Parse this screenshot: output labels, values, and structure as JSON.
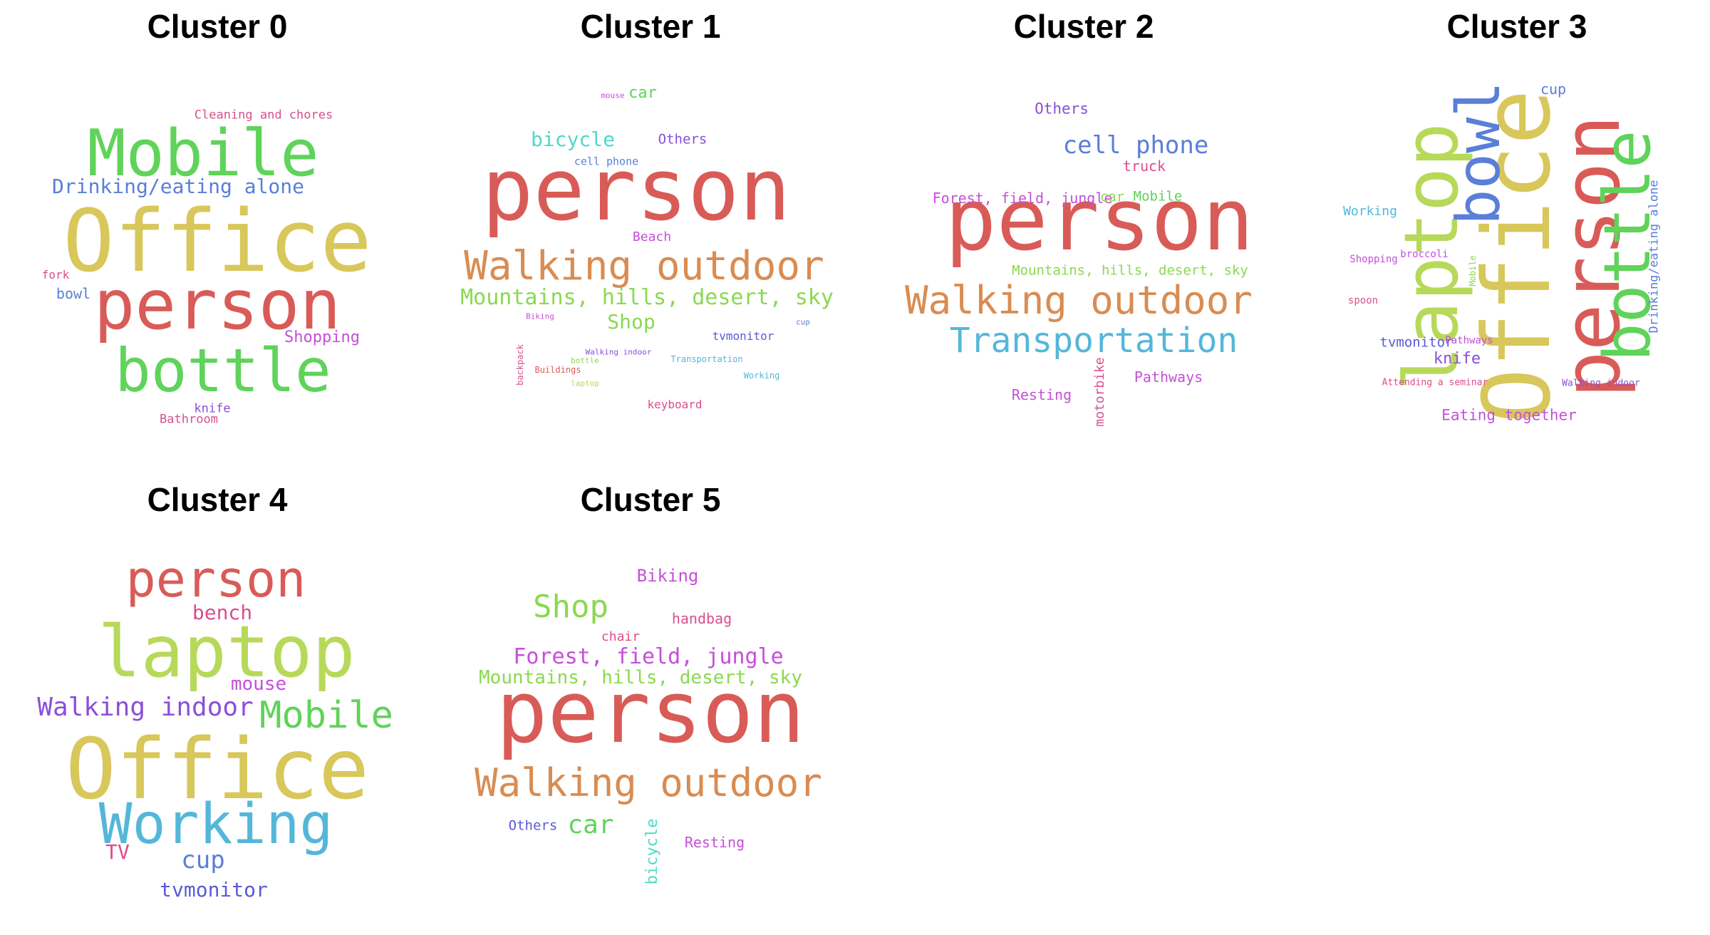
{
  "palette": {
    "red": "#d95b57",
    "yellow": "#d8c75a",
    "green": "#5fd35a",
    "lime": "#b7d95a",
    "orange": "#d98c52",
    "blue": "#5a7fd9",
    "cyan": "#54b7d9",
    "teal": "#4fd9c7",
    "purple": "#8a4fd9",
    "indigo": "#5a5ad9",
    "magenta": "#c54fd9",
    "pink": "#d94f8c",
    "lightgreen": "#8ad94f"
  },
  "clusters": [
    {
      "title": "Cluster 0",
      "words": [
        {
          "text": "Office",
          "size": 120,
          "color": "yellow"
        },
        {
          "text": "person",
          "size": 96,
          "color": "red"
        },
        {
          "text": "Mobile",
          "size": 90,
          "color": "green"
        },
        {
          "text": "bottle",
          "size": 84,
          "color": "green"
        },
        {
          "text": "Drinking/eating alone",
          "size": 28,
          "color": "blue"
        },
        {
          "text": "Cleaning and chores",
          "size": 17,
          "color": "pink"
        },
        {
          "text": "Shopping",
          "size": 22,
          "color": "magenta"
        },
        {
          "text": "bowl",
          "size": 20,
          "color": "blue"
        },
        {
          "text": "fork",
          "size": 16,
          "color": "pink"
        },
        {
          "text": "knife",
          "size": 17,
          "color": "purple"
        },
        {
          "text": "Bathroom",
          "size": 17,
          "color": "pink"
        }
      ]
    },
    {
      "title": "Cluster 1",
      "words": [
        {
          "text": "person",
          "size": 120,
          "color": "red"
        },
        {
          "text": "Walking outdoor",
          "size": 56,
          "color": "orange"
        },
        {
          "text": "Mountains, hills, desert, sky",
          "size": 30,
          "color": "lightgreen"
        },
        {
          "text": "bicycle",
          "size": 28,
          "color": "teal"
        },
        {
          "text": "Shop",
          "size": 28,
          "color": "lightgreen"
        },
        {
          "text": "car",
          "size": 22,
          "color": "green"
        },
        {
          "text": "Others",
          "size": 19,
          "color": "purple"
        },
        {
          "text": "cell phone",
          "size": 15,
          "color": "blue"
        },
        {
          "text": "Beach",
          "size": 18,
          "color": "magenta"
        },
        {
          "text": "tvmonitor",
          "size": 16,
          "color": "indigo"
        },
        {
          "text": "keyboard",
          "size": 16,
          "color": "pink"
        },
        {
          "text": "mouse",
          "size": 11,
          "color": "magenta"
        },
        {
          "text": "Biking",
          "size": 11,
          "color": "magenta"
        },
        {
          "text": "Walking indoor",
          "size": 11,
          "color": "purple"
        },
        {
          "text": "bottle",
          "size": 11,
          "color": "lightgreen"
        },
        {
          "text": "Buildings",
          "size": 12,
          "color": "red"
        },
        {
          "text": "laptop",
          "size": 11,
          "color": "lime"
        },
        {
          "text": "Transportation",
          "size": 12,
          "color": "cyan"
        },
        {
          "text": "Working",
          "size": 12,
          "color": "cyan"
        },
        {
          "text": "cup",
          "size": 11,
          "color": "blue"
        },
        {
          "text": "backpack",
          "size": 12,
          "color": "pink"
        }
      ]
    },
    {
      "title": "Cluster 2",
      "words": [
        {
          "text": "person",
          "size": 120,
          "color": "red"
        },
        {
          "text": "Walking outdoor",
          "size": 54,
          "color": "orange"
        },
        {
          "text": "Transportation",
          "size": 48,
          "color": "cyan"
        },
        {
          "text": "cell phone",
          "size": 34,
          "color": "blue"
        },
        {
          "text": "Others",
          "size": 21,
          "color": "purple"
        },
        {
          "text": "truck",
          "size": 20,
          "color": "pink"
        },
        {
          "text": "Forest, field, jungle",
          "size": 20,
          "color": "magenta"
        },
        {
          "text": "car",
          "size": 19,
          "color": "lightgreen"
        },
        {
          "text": "Mobile",
          "size": 19,
          "color": "green"
        },
        {
          "text": "Mountains, hills, desert, sky",
          "size": 19,
          "color": "lightgreen"
        },
        {
          "text": "Resting",
          "size": 20,
          "color": "magenta"
        },
        {
          "text": "Pathways",
          "size": 20,
          "color": "magenta"
        },
        {
          "text": "motorbike",
          "size": 18,
          "color": "pink"
        }
      ]
    },
    {
      "title": "Cluster 3",
      "words": [
        {
          "text": "Office",
          "size": 130,
          "color": "yellow"
        },
        {
          "text": "person",
          "size": 110,
          "color": "red"
        },
        {
          "text": "laptop",
          "size": 104,
          "color": "lime"
        },
        {
          "text": "bottle",
          "size": 90,
          "color": "green"
        },
        {
          "text": "bowl",
          "size": 84,
          "color": "blue"
        },
        {
          "text": "Drinking/eating alone",
          "size": 17,
          "color": "blue"
        },
        {
          "text": "cup",
          "size": 20,
          "color": "blue"
        },
        {
          "text": "Working",
          "size": 18,
          "color": "cyan"
        },
        {
          "text": "Shopping",
          "size": 14,
          "color": "magenta"
        },
        {
          "text": "broccoli",
          "size": 14,
          "color": "magenta"
        },
        {
          "text": "Mobile",
          "size": 12,
          "color": "lightgreen"
        },
        {
          "text": "spoon",
          "size": 14,
          "color": "pink"
        },
        {
          "text": "tvmonitor",
          "size": 19,
          "color": "indigo"
        },
        {
          "text": "Pathways",
          "size": 14,
          "color": "magenta"
        },
        {
          "text": "knife",
          "size": 22,
          "color": "purple"
        },
        {
          "text": "Attending a seminar",
          "size": 13,
          "color": "pink"
        },
        {
          "text": "Walking indoor",
          "size": 13,
          "color": "purple"
        },
        {
          "text": "Eating together",
          "size": 21,
          "color": "magenta"
        }
      ]
    },
    {
      "title": "Cluster 4",
      "words": [
        {
          "text": "Office",
          "size": 118,
          "color": "yellow"
        },
        {
          "text": "laptop",
          "size": 100,
          "color": "lime"
        },
        {
          "text": "person",
          "size": 70,
          "color": "red"
        },
        {
          "text": "Working",
          "size": 78,
          "color": "cyan"
        },
        {
          "text": "Mobile",
          "size": 52,
          "color": "green"
        },
        {
          "text": "Walking indoor",
          "size": 36,
          "color": "purple"
        },
        {
          "text": "bench",
          "size": 28,
          "color": "pink"
        },
        {
          "text": "mouse",
          "size": 26,
          "color": "magenta"
        },
        {
          "text": "cup",
          "size": 34,
          "color": "blue"
        },
        {
          "text": "TV",
          "size": 28,
          "color": "pink"
        },
        {
          "text": "tvmonitor",
          "size": 28,
          "color": "indigo"
        }
      ]
    },
    {
      "title": "Cluster 5",
      "words": [
        {
          "text": "person",
          "size": 120,
          "color": "red"
        },
        {
          "text": "Walking outdoor",
          "size": 54,
          "color": "orange"
        },
        {
          "text": "Shop",
          "size": 44,
          "color": "lightgreen"
        },
        {
          "text": "Forest, field, jungle",
          "size": 30,
          "color": "magenta"
        },
        {
          "text": "Mountains, hills, desert, sky",
          "size": 26,
          "color": "lightgreen"
        },
        {
          "text": "car",
          "size": 36,
          "color": "green"
        },
        {
          "text": "Biking",
          "size": 24,
          "color": "magenta"
        },
        {
          "text": "handbag",
          "size": 20,
          "color": "pink"
        },
        {
          "text": "chair",
          "size": 18,
          "color": "pink"
        },
        {
          "text": "Others",
          "size": 19,
          "color": "indigo"
        },
        {
          "text": "Resting",
          "size": 20,
          "color": "magenta"
        },
        {
          "text": "bicycle",
          "size": 22,
          "color": "teal"
        }
      ]
    }
  ]
}
